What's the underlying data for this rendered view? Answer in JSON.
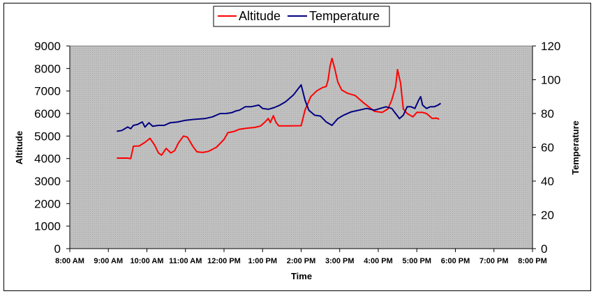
{
  "chart_data": {
    "type": "line",
    "title": "",
    "xlabel": "Time",
    "ylabel_left": "Altitude",
    "ylabel_right": "Temperature",
    "x_ticks": [
      "8:00 AM",
      "9:00 AM",
      "10:00 AM",
      "11:00 AM",
      "12:00 PM",
      "1:00 PM",
      "2:00 PM",
      "3:00 PM",
      "4:00 PM",
      "5:00 PM",
      "6:00 PM",
      "7:00 PM",
      "8:00 PM"
    ],
    "x_range_hours": [
      8,
      20
    ],
    "y_left_ticks": [
      "0",
      "1000",
      "2000",
      "3000",
      "4000",
      "5000",
      "6000",
      "7000",
      "8000",
      "9000"
    ],
    "y_left_range": [
      0,
      9000
    ],
    "y_right_ticks": [
      "0",
      "20",
      "40",
      "60",
      "80",
      "100",
      "120"
    ],
    "y_right_range": [
      0,
      120
    ],
    "legend_position": "top-center",
    "series": [
      {
        "name": "Altitude",
        "axis": "left",
        "color": "#ff0000",
        "points": [
          [
            9.22,
            4020
          ],
          [
            9.5,
            4020
          ],
          [
            9.58,
            4000
          ],
          [
            9.65,
            4550
          ],
          [
            9.8,
            4560
          ],
          [
            9.95,
            4720
          ],
          [
            10.08,
            4900
          ],
          [
            10.2,
            4600
          ],
          [
            10.3,
            4250
          ],
          [
            10.38,
            4150
          ],
          [
            10.5,
            4450
          ],
          [
            10.62,
            4250
          ],
          [
            10.72,
            4350
          ],
          [
            10.82,
            4700
          ],
          [
            10.95,
            5000
          ],
          [
            11.05,
            4950
          ],
          [
            11.2,
            4520
          ],
          [
            11.3,
            4300
          ],
          [
            11.45,
            4270
          ],
          [
            11.6,
            4320
          ],
          [
            11.8,
            4500
          ],
          [
            12.0,
            4850
          ],
          [
            12.1,
            5150
          ],
          [
            12.25,
            5200
          ],
          [
            12.4,
            5300
          ],
          [
            12.6,
            5350
          ],
          [
            12.8,
            5380
          ],
          [
            12.95,
            5450
          ],
          [
            13.05,
            5600
          ],
          [
            13.15,
            5780
          ],
          [
            13.2,
            5600
          ],
          [
            13.28,
            5900
          ],
          [
            13.35,
            5600
          ],
          [
            13.42,
            5450
          ],
          [
            13.6,
            5450
          ],
          [
            14.0,
            5460
          ],
          [
            14.1,
            6150
          ],
          [
            14.25,
            6750
          ],
          [
            14.4,
            7000
          ],
          [
            14.55,
            7150
          ],
          [
            14.65,
            7200
          ],
          [
            14.7,
            7500
          ],
          [
            14.75,
            8100
          ],
          [
            14.8,
            8450
          ],
          [
            14.87,
            8000
          ],
          [
            14.95,
            7400
          ],
          [
            15.05,
            7050
          ],
          [
            15.2,
            6900
          ],
          [
            15.4,
            6800
          ],
          [
            15.6,
            6500
          ],
          [
            15.75,
            6300
          ],
          [
            15.9,
            6100
          ],
          [
            16.1,
            6050
          ],
          [
            16.25,
            6200
          ],
          [
            16.35,
            6600
          ],
          [
            16.45,
            7200
          ],
          [
            16.5,
            7950
          ],
          [
            16.58,
            7350
          ],
          [
            16.65,
            6200
          ],
          [
            16.75,
            6000
          ],
          [
            16.9,
            5850
          ],
          [
            17.0,
            6050
          ],
          [
            17.15,
            6050
          ],
          [
            17.25,
            6000
          ],
          [
            17.32,
            5900
          ],
          [
            17.4,
            5780
          ],
          [
            17.5,
            5800
          ],
          [
            17.58,
            5750
          ]
        ]
      },
      {
        "name": "Temperature",
        "axis": "right",
        "color": "#000080",
        "points": [
          [
            9.22,
            69.5
          ],
          [
            9.35,
            70
          ],
          [
            9.5,
            72
          ],
          [
            9.58,
            71
          ],
          [
            9.65,
            73
          ],
          [
            9.75,
            73.5
          ],
          [
            9.88,
            75
          ],
          [
            9.95,
            72
          ],
          [
            10.05,
            74.5
          ],
          [
            10.15,
            72.5
          ],
          [
            10.3,
            73
          ],
          [
            10.45,
            73
          ],
          [
            10.6,
            74.5
          ],
          [
            10.8,
            75
          ],
          [
            11.0,
            76
          ],
          [
            11.2,
            76.5
          ],
          [
            11.5,
            77
          ],
          [
            11.7,
            78
          ],
          [
            11.9,
            80
          ],
          [
            12.05,
            80
          ],
          [
            12.2,
            80.5
          ],
          [
            12.3,
            81.5
          ],
          [
            12.4,
            82
          ],
          [
            12.55,
            84
          ],
          [
            12.7,
            84
          ],
          [
            12.9,
            85
          ],
          [
            13.0,
            83
          ],
          [
            13.15,
            82.5
          ],
          [
            13.3,
            83.5
          ],
          [
            13.45,
            85
          ],
          [
            13.6,
            87
          ],
          [
            13.8,
            91
          ],
          [
            14.0,
            97
          ],
          [
            14.1,
            88
          ],
          [
            14.2,
            82
          ],
          [
            14.35,
            79
          ],
          [
            14.5,
            78.5
          ],
          [
            14.65,
            75
          ],
          [
            14.8,
            73
          ],
          [
            14.95,
            77
          ],
          [
            15.1,
            79
          ],
          [
            15.3,
            81
          ],
          [
            15.5,
            82
          ],
          [
            15.7,
            83
          ],
          [
            15.9,
            82
          ],
          [
            16.05,
            83
          ],
          [
            16.2,
            84
          ],
          [
            16.35,
            83
          ],
          [
            16.45,
            80
          ],
          [
            16.55,
            77
          ],
          [
            16.65,
            79
          ],
          [
            16.75,
            84
          ],
          [
            16.85,
            84
          ],
          [
            16.95,
            83
          ],
          [
            17.05,
            88
          ],
          [
            17.1,
            90
          ],
          [
            17.15,
            85
          ],
          [
            17.25,
            83
          ],
          [
            17.35,
            84
          ],
          [
            17.45,
            84
          ],
          [
            17.55,
            85
          ],
          [
            17.62,
            86
          ]
        ]
      }
    ]
  }
}
